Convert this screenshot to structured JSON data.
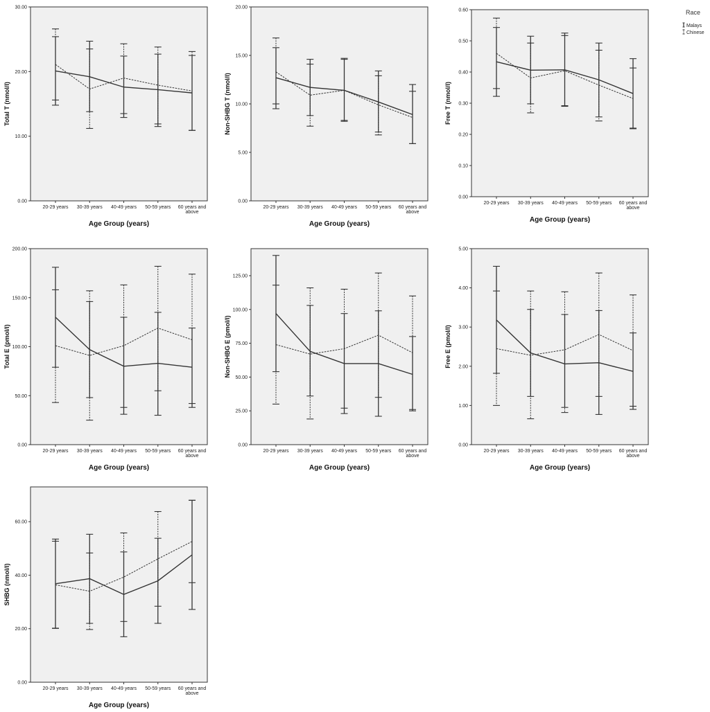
{
  "legend": {
    "title": "Race",
    "items": [
      {
        "label": "Malays",
        "style": "solid"
      },
      {
        "label": "Chinese",
        "style": "dashed"
      }
    ]
  },
  "colors": {
    "plot_bg": "#f0f0f0",
    "frame": "#333333",
    "line": "#333333"
  },
  "chart_data": [
    {
      "type": "line",
      "ylabel": "Total T (nmol/l)",
      "xlabel": "Age Group (years)",
      "categories": [
        [
          "20-29 years"
        ],
        [
          "30-39 years"
        ],
        [
          "40-49 years"
        ],
        [
          "50-59 years"
        ],
        [
          "60 years and",
          "above"
        ]
      ],
      "yticks": [
        "0.00",
        "10.00",
        "20.00",
        "30.00"
      ],
      "ylim": [
        0,
        30
      ],
      "series": [
        {
          "name": "Malays",
          "style": "solid",
          "means": [
            20.1,
            19.2,
            17.6,
            17.2,
            16.7
          ],
          "lower": [
            14.8,
            13.8,
            12.9,
            11.5,
            10.9
          ],
          "upper": [
            25.4,
            24.7,
            22.4,
            22.7,
            22.5
          ]
        },
        {
          "name": "Chinese",
          "style": "dashed",
          "means": [
            21.1,
            17.3,
            19.0,
            17.9,
            17.0
          ],
          "lower": [
            15.6,
            11.2,
            13.5,
            11.9,
            10.9
          ],
          "upper": [
            26.6,
            23.5,
            24.3,
            23.8,
            23.1
          ]
        }
      ]
    },
    {
      "type": "line",
      "ylabel": "Non-SHBG T (nmol/l)",
      "xlabel": "Age Group (years)",
      "categories": [
        [
          "20-29 years"
        ],
        [
          "30-39 years"
        ],
        [
          "40-49 years"
        ],
        [
          "50-59 years"
        ],
        [
          "60 years and",
          "above"
        ]
      ],
      "yticks": [
        "0.00",
        "5.00",
        "10.00",
        "15.00",
        "20.00"
      ],
      "ylim": [
        0,
        20
      ],
      "series": [
        {
          "name": "Malays",
          "style": "solid",
          "means": [
            12.7,
            11.7,
            11.4,
            10.2,
            8.9
          ],
          "lower": [
            9.5,
            8.8,
            8.2,
            7.1,
            5.9
          ],
          "upper": [
            15.8,
            14.6,
            14.6,
            13.4,
            12.0
          ]
        },
        {
          "name": "Chinese",
          "style": "dashed",
          "means": [
            13.3,
            10.9,
            11.4,
            9.9,
            8.6
          ],
          "lower": [
            10.0,
            7.7,
            8.3,
            6.8,
            5.9
          ],
          "upper": [
            16.8,
            14.1,
            14.7,
            12.9,
            11.3
          ]
        }
      ]
    },
    {
      "type": "line",
      "ylabel": "Free T (nmol/l)",
      "xlabel": "Age Group (years)",
      "categories": [
        [
          "20-29 years"
        ],
        [
          "30-39 years"
        ],
        [
          "40-49 years"
        ],
        [
          "50-59 years"
        ],
        [
          "60 years and",
          "above"
        ]
      ],
      "yticks": [
        "0.00",
        "0.10",
        "0.20",
        "0.30",
        "0.40",
        "0.50",
        "0.60"
      ],
      "ylim": [
        0,
        0.6
      ],
      "series": [
        {
          "name": "Malays",
          "style": "solid",
          "means": [
            0.433,
            0.406,
            0.407,
            0.375,
            0.331
          ],
          "lower": [
            0.322,
            0.298,
            0.29,
            0.256,
            0.22
          ],
          "upper": [
            0.543,
            0.515,
            0.525,
            0.493,
            0.443
          ]
        },
        {
          "name": "Chinese",
          "style": "dashed",
          "means": [
            0.46,
            0.381,
            0.404,
            0.358,
            0.315
          ],
          "lower": [
            0.347,
            0.269,
            0.292,
            0.243,
            0.218
          ],
          "upper": [
            0.573,
            0.493,
            0.517,
            0.47,
            0.413
          ]
        }
      ]
    },
    {
      "type": "line",
      "ylabel": "Total E (pmol/l)",
      "xlabel": "Age Group (years)",
      "categories": [
        [
          "20-29 years"
        ],
        [
          "30-39 years"
        ],
        [
          "40-49 years"
        ],
        [
          "50-59 years"
        ],
        [
          "60 years and",
          "above"
        ]
      ],
      "yticks": [
        "0.00",
        "50.00",
        "100.00",
        "150.00",
        "200.00"
      ],
      "ylim": [
        0,
        200
      ],
      "series": [
        {
          "name": "Malays",
          "style": "solid",
          "means": [
            130,
            97,
            80,
            83,
            79
          ],
          "lower": [
            79,
            48,
            31,
            30,
            38
          ],
          "upper": [
            181,
            146,
            130,
            135,
            119
          ]
        },
        {
          "name": "Chinese",
          "style": "dashed",
          "means": [
            101,
            91,
            101,
            119,
            107
          ],
          "lower": [
            43,
            25,
            38,
            55,
            42
          ],
          "upper": [
            158,
            157,
            163,
            182,
            174
          ]
        }
      ]
    },
    {
      "type": "line",
      "ylabel": "Non-SHBG E (pmol/l)",
      "xlabel": "Age Group (years)",
      "categories": [
        [
          "20-29 years"
        ],
        [
          "30-39 years"
        ],
        [
          "40-49 years"
        ],
        [
          "50-59 years"
        ],
        [
          "60 years and",
          "above"
        ]
      ],
      "yticks": [
        "0.00",
        "25.00",
        "50.00",
        "75.00",
        "100.00",
        "125.00"
      ],
      "ylim": [
        0,
        145
      ],
      "series": [
        {
          "name": "Malays",
          "style": "solid",
          "means": [
            97,
            69,
            60,
            60,
            52
          ],
          "lower": [
            54,
            36,
            23,
            21,
            25
          ],
          "upper": [
            140,
            103,
            97,
            99,
            80
          ]
        },
        {
          "name": "Chinese",
          "style": "dashed",
          "means": [
            74,
            67,
            71,
            81,
            68
          ],
          "lower": [
            30,
            19,
            27,
            35,
            26
          ],
          "upper": [
            118,
            116,
            115,
            127,
            110
          ]
        }
      ]
    },
    {
      "type": "line",
      "ylabel": "Free E (pmol/l)",
      "xlabel": "Age Group (years)",
      "categories": [
        [
          "20-29 years"
        ],
        [
          "30-39 years"
        ],
        [
          "40-49 years"
        ],
        [
          "50-59 years"
        ],
        [
          "60 years and",
          "above"
        ]
      ],
      "yticks": [
        "0.00",
        "1.00",
        "2.00",
        "3.00",
        "4.00",
        "5.00"
      ],
      "ylim": [
        0,
        5
      ],
      "series": [
        {
          "name": "Malays",
          "style": "solid",
          "means": [
            3.18,
            2.34,
            2.06,
            2.09,
            1.87
          ],
          "lower": [
            1.82,
            1.23,
            0.95,
            0.77,
            0.9
          ],
          "upper": [
            4.55,
            3.45,
            3.32,
            3.42,
            2.85
          ]
        },
        {
          "name": "Chinese",
          "style": "dashed",
          "means": [
            2.45,
            2.28,
            2.42,
            2.81,
            2.4
          ],
          "lower": [
            1.0,
            0.66,
            0.82,
            1.23,
            0.98
          ],
          "upper": [
            3.92,
            3.92,
            3.9,
            4.38,
            3.82
          ]
        }
      ]
    },
    {
      "type": "line",
      "ylabel": "SHBG (nmol/l)",
      "xlabel": "Age Group (years)",
      "categories": [
        [
          "20-29 years"
        ],
        [
          "30-39 years"
        ],
        [
          "40-49 years"
        ],
        [
          "50-59 years"
        ],
        [
          "60 years and",
          "above"
        ]
      ],
      "yticks": [
        "0.00",
        "20.00",
        "40.00",
        "60.00"
      ],
      "ylim": [
        0,
        73
      ],
      "series": [
        {
          "name": "Malays",
          "style": "solid",
          "means": [
            36.8,
            38.7,
            32.8,
            37.9,
            47.6
          ],
          "lower": [
            20.2,
            22.0,
            17.0,
            22.0,
            27.2
          ],
          "upper": [
            53.5,
            55.3,
            48.7,
            53.8,
            68.0
          ]
        },
        {
          "name": "Chinese",
          "style": "dashed",
          "means": [
            36.4,
            34.0,
            39.3,
            46.1,
            52.6
          ],
          "lower": [
            20.1,
            19.7,
            22.7,
            28.4,
            37.2
          ],
          "upper": [
            52.7,
            48.3,
            55.8,
            63.8,
            68.0
          ]
        }
      ]
    }
  ]
}
